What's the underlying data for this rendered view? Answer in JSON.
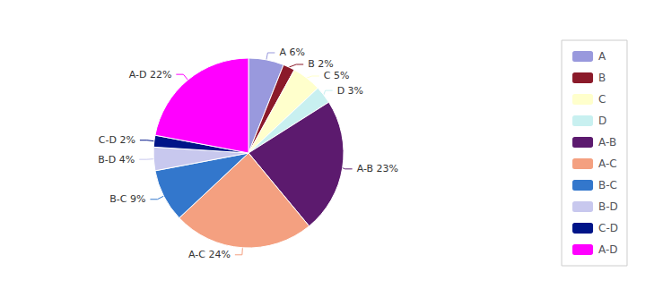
{
  "chart_data": {
    "type": "pie",
    "categories": [
      "A",
      "B",
      "C",
      "D",
      "A-B",
      "A-C",
      "B-C",
      "B-D",
      "C-D",
      "A-D"
    ],
    "values": [
      6,
      2,
      5,
      3,
      23,
      24,
      9,
      4,
      2,
      22
    ],
    "value_labels": [
      "A 6%",
      "B 2%",
      "C 5%",
      "D 3%",
      "A-B 23%",
      "A-C 24%",
      "B-C 9%",
      "B-D 4%",
      "C-D 2%",
      "A-D 22%"
    ],
    "colors": [
      "#9999dd",
      "#8b1a2a",
      "#ffffcc",
      "#c8f0f0",
      "#5c1a6e",
      "#f4a080",
      "#3377cc",
      "#c8c8ee",
      "#001488",
      "#ff00ff"
    ],
    "data_labels": true,
    "legend": "right"
  }
}
